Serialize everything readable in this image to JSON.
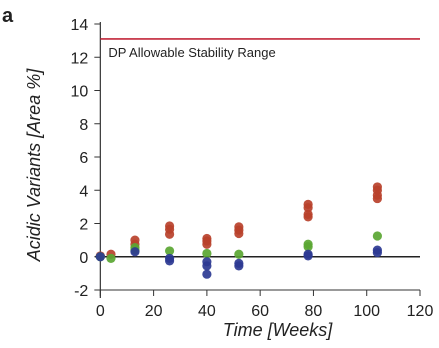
{
  "panel_label": "a",
  "colors": {
    "red": "#b8412b",
    "green": "#5aa632",
    "blue": "#2c3a93",
    "limit": "#c2263a",
    "axis": "#333333"
  },
  "chart_data": {
    "type": "scatter",
    "title": "",
    "xlabel": "Time [Weeks]",
    "ylabel": "Acidic Variants [Area %]",
    "xlim": [
      -2,
      120
    ],
    "ylim": [
      -2,
      14
    ],
    "xticks": [
      0,
      20,
      40,
      60,
      80,
      100,
      120
    ],
    "yticks": [
      -2,
      0,
      2,
      4,
      6,
      8,
      10,
      12,
      14
    ],
    "grid": false,
    "hline": {
      "y": 13.1,
      "label": "DP Allowable Stability Range",
      "color": "#c2263a"
    },
    "zero_line": 0,
    "series": [
      {
        "color": "#b8412b",
        "points": [
          [
            0,
            0.05
          ],
          [
            4,
            0.15
          ],
          [
            13,
            1.0
          ],
          [
            13,
            0.75
          ],
          [
            26,
            1.85
          ],
          [
            26,
            1.65
          ],
          [
            26,
            1.35
          ],
          [
            40,
            1.1
          ],
          [
            40,
            0.95
          ],
          [
            40,
            0.75
          ],
          [
            52,
            1.8
          ],
          [
            52,
            1.6
          ],
          [
            52,
            1.4
          ],
          [
            78,
            3.15
          ],
          [
            78,
            2.95
          ],
          [
            78,
            2.55
          ],
          [
            78,
            2.4
          ],
          [
            104,
            4.2
          ],
          [
            104,
            4.0
          ],
          [
            104,
            3.7
          ],
          [
            104,
            3.5
          ]
        ]
      },
      {
        "color": "#5aa632",
        "points": [
          [
            0,
            0.0
          ],
          [
            4,
            -0.1
          ],
          [
            13,
            0.55
          ],
          [
            13,
            0.4
          ],
          [
            26,
            0.35
          ],
          [
            40,
            0.2
          ],
          [
            52,
            0.15
          ],
          [
            78,
            0.75
          ],
          [
            78,
            0.6
          ],
          [
            104,
            1.25
          ]
        ]
      },
      {
        "color": "#2c3a93",
        "points": [
          [
            0,
            0.0
          ],
          [
            13,
            0.3
          ],
          [
            26,
            -0.1
          ],
          [
            26,
            -0.25
          ],
          [
            40,
            -0.3
          ],
          [
            40,
            -0.55
          ],
          [
            40,
            -1.05
          ],
          [
            52,
            -0.4
          ],
          [
            52,
            -0.55
          ],
          [
            78,
            0.15
          ],
          [
            78,
            0.05
          ],
          [
            104,
            0.4
          ],
          [
            104,
            0.25
          ]
        ]
      }
    ]
  }
}
